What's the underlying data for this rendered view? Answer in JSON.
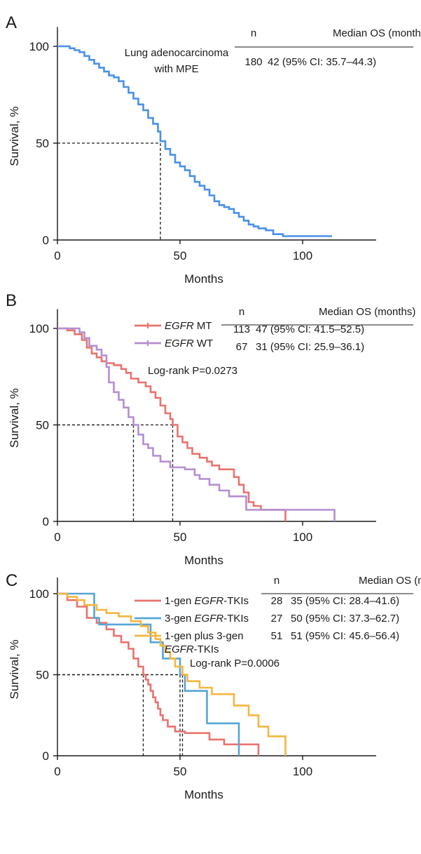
{
  "chart_data": [
    {
      "panel": "A",
      "type": "line",
      "xlabel": "Months",
      "ylabel": "Survival, %",
      "xlim": [
        0,
        130
      ],
      "ylim": [
        0,
        110
      ],
      "xticks": [
        "0",
        "50",
        "100"
      ],
      "yticks": [
        "0",
        "50",
        "100"
      ],
      "annotation": [
        "Lung adenocarcinoma",
        "with MPE"
      ],
      "table": {
        "headers": [
          "n",
          "Median OS (months)"
        ],
        "rows": [
          [
            "180",
            "42 (95% CI: 35.7–44.3)"
          ]
        ]
      },
      "medians": [
        42
      ],
      "series": [
        {
          "name": "Lung adenocarcinoma with MPE",
          "color": "#4a90e8",
          "x": [
            0,
            3,
            5,
            7,
            9,
            11,
            13,
            15,
            17,
            19,
            21,
            23,
            25,
            27,
            29,
            31,
            33,
            35,
            37,
            39,
            41,
            42,
            44,
            46,
            48,
            50,
            52,
            54,
            56,
            58,
            60,
            62,
            64,
            66,
            68,
            70,
            72,
            74,
            76,
            78,
            80,
            82,
            85,
            88,
            92,
            100,
            112
          ],
          "y": [
            100,
            100,
            99,
            98,
            97,
            95,
            93,
            91,
            89,
            87,
            85,
            84,
            82,
            79,
            76,
            73,
            70,
            67,
            63,
            60,
            56,
            51,
            47,
            44,
            40,
            38,
            36,
            33,
            30,
            28,
            26,
            23,
            20,
            18,
            17,
            16,
            14,
            12,
            10,
            8,
            7,
            6,
            5,
            3,
            2,
            2,
            2
          ]
        }
      ]
    },
    {
      "panel": "B",
      "type": "line",
      "xlabel": "Months",
      "ylabel": "Survival, %",
      "xlim": [
        0,
        130
      ],
      "ylim": [
        0,
        110
      ],
      "xticks": [
        "0",
        "50",
        "100"
      ],
      "yticks": [
        "0",
        "50",
        "100"
      ],
      "annotation": [
        "Log-rank P=0.0273"
      ],
      "table": {
        "headers": [
          "n",
          "Median OS (months)"
        ],
        "rows": [
          [
            "113",
            "47 (95% CI: 41.5–52.5)"
          ],
          [
            "67",
            "31 (95% CI: 25.9–36.1)"
          ]
        ]
      },
      "medians": [
        47,
        31
      ],
      "series": [
        {
          "name": "EGFR MT",
          "legend_italic": "EGFR",
          "legend_rest": " MT",
          "color": "#e8736e",
          "x": [
            0,
            4,
            7,
            10,
            12,
            14,
            16,
            18,
            20,
            23,
            26,
            28,
            30,
            33,
            36,
            38,
            40,
            42,
            44,
            46,
            47,
            49,
            51,
            53,
            55,
            58,
            61,
            63,
            66,
            70,
            72,
            74,
            76,
            78,
            80,
            83,
            93
          ],
          "y": [
            100,
            99,
            97,
            94,
            90,
            87,
            85,
            83,
            82,
            81,
            79,
            77,
            74,
            72,
            70,
            67,
            64,
            60,
            56,
            53,
            50,
            44,
            41,
            38,
            35,
            33,
            31,
            29,
            27,
            27,
            23,
            19,
            15,
            10,
            8,
            6,
            0
          ]
        },
        {
          "name": "EGFR WT",
          "legend_italic": "EGFR",
          "legend_rest": " WT",
          "color": "#b48ed1",
          "x": [
            0,
            5,
            9,
            11,
            13,
            16,
            18,
            20,
            21,
            23,
            25,
            27,
            29,
            31,
            33,
            35,
            37,
            39,
            42,
            46,
            52,
            56,
            58,
            62,
            66,
            70,
            77,
            112,
            113
          ],
          "y": [
            100,
            100,
            98,
            95,
            91,
            89,
            86,
            80,
            72,
            67,
            63,
            59,
            54,
            50,
            45,
            40,
            38,
            34,
            31,
            28,
            27,
            24,
            22,
            19,
            16,
            13,
            6,
            6,
            0
          ]
        }
      ]
    },
    {
      "panel": "C",
      "type": "line",
      "xlabel": "Months",
      "ylabel": "Survival, %",
      "xlim": [
        0,
        130
      ],
      "ylim": [
        0,
        110
      ],
      "xticks": [
        "0",
        "50",
        "100"
      ],
      "yticks": [
        "0",
        "50",
        "100"
      ],
      "annotation": [
        "Log-rank P=0.0006"
      ],
      "table": {
        "headers": [
          "n",
          "Median OS (months)"
        ],
        "rows": [
          [
            "28",
            "35 (95% CI: 28.4–41.6)"
          ],
          [
            "27",
            "50 (95% CI: 37.3–62.7)"
          ],
          [
            "51",
            "51 (95% CI: 45.6–56.4)"
          ]
        ]
      },
      "medians": [
        35,
        50,
        51
      ],
      "series": [
        {
          "name": "1-gen EGFR-TKIs",
          "legend_lines": [
            [
              "1-gen ",
              "EGFR",
              "-TKIs"
            ]
          ],
          "color": "#e8736e",
          "x": [
            0,
            4,
            8,
            12,
            16,
            20,
            23,
            26,
            29,
            31,
            33,
            35,
            36,
            37,
            38,
            39,
            40,
            41,
            42,
            43,
            45,
            48,
            52,
            57,
            62,
            68,
            82
          ],
          "y": [
            100,
            96,
            92,
            85,
            82,
            78,
            74,
            70,
            66,
            60,
            55,
            50,
            47,
            44,
            40,
            36,
            33,
            29,
            25,
            22,
            18,
            15,
            14,
            14,
            10,
            7,
            0
          ]
        },
        {
          "name": "3-gen EGFR-TKIs",
          "legend_lines": [
            [
              "3-gen ",
              "EGFR",
              "-TKIs"
            ]
          ],
          "color": "#56a6d6",
          "x": [
            0,
            12,
            15,
            17,
            35,
            38,
            43,
            50,
            52,
            61,
            74,
            74
          ],
          "y": [
            100,
            100,
            85,
            81,
            81,
            70,
            60,
            50,
            40,
            20,
            20,
            0
          ]
        },
        {
          "name": "1-gen plus 3-gen EGFR-TKIs",
          "legend_lines": [
            [
              "1-gen plus 3-gen",
              "",
              ""
            ],
            [
              "",
              "EGFR",
              "-TKIs"
            ]
          ],
          "color": "#f4b63f",
          "x": [
            0,
            4,
            8,
            11,
            16,
            20,
            25,
            30,
            34,
            37,
            40,
            42,
            44,
            46,
            48,
            51,
            53,
            58,
            63,
            67,
            72,
            78,
            82,
            86,
            92,
            93
          ],
          "y": [
            100,
            98,
            96,
            93,
            90,
            88,
            86,
            83,
            80,
            76,
            72,
            68,
            64,
            60,
            55,
            50,
            46,
            42,
            38,
            38,
            31,
            25,
            18,
            12,
            12,
            0
          ]
        }
      ]
    }
  ],
  "panels": {
    "a": {
      "letter": "A"
    },
    "b": {
      "letter": "B"
    },
    "c": {
      "letter": "C"
    }
  }
}
